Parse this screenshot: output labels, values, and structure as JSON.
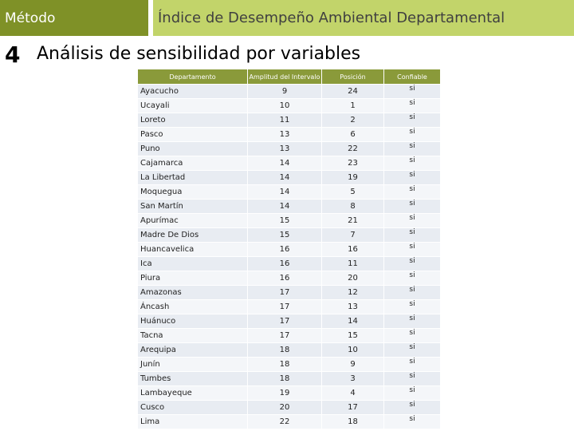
{
  "header": {
    "section": "Método",
    "title": "Índice de Desempeño Ambiental Departamental"
  },
  "slide": {
    "number": "4",
    "heading": "Análisis de sensibilidad por variables"
  },
  "table": {
    "headers": [
      "Departamento",
      "Amplitud del Intervalo",
      "Posición",
      "Confiable"
    ],
    "rows": [
      [
        "Ayacucho",
        9,
        24,
        "si"
      ],
      [
        "Ucayali",
        10,
        1,
        "si"
      ],
      [
        "Loreto",
        11,
        2,
        "si"
      ],
      [
        "Pasco",
        13,
        6,
        "si"
      ],
      [
        "Puno",
        13,
        22,
        "si"
      ],
      [
        "Cajamarca",
        14,
        23,
        "si"
      ],
      [
        "La Libertad",
        14,
        19,
        "si"
      ],
      [
        "Moquegua",
        14,
        5,
        "si"
      ],
      [
        "San Martín",
        14,
        8,
        "si"
      ],
      [
        "Apurímac",
        15,
        21,
        "si"
      ],
      [
        "Madre De Dios",
        15,
        7,
        "si"
      ],
      [
        "Huancavelica",
        16,
        16,
        "si"
      ],
      [
        "Ica",
        16,
        11,
        "si"
      ],
      [
        "Piura",
        16,
        20,
        "si"
      ],
      [
        "Amazonas",
        17,
        12,
        "si"
      ],
      [
        "Áncash",
        17,
        13,
        "si"
      ],
      [
        "Huánuco",
        17,
        14,
        "si"
      ],
      [
        "Tacna",
        17,
        15,
        "si"
      ],
      [
        "Arequipa",
        18,
        10,
        "si"
      ],
      [
        "Junín",
        18,
        9,
        "si"
      ],
      [
        "Tumbes",
        18,
        3,
        "si"
      ],
      [
        "Lambayeque",
        19,
        4,
        "si"
      ],
      [
        "Cusco",
        20,
        17,
        "si"
      ],
      [
        "Lima",
        22,
        18,
        "si"
      ]
    ]
  }
}
